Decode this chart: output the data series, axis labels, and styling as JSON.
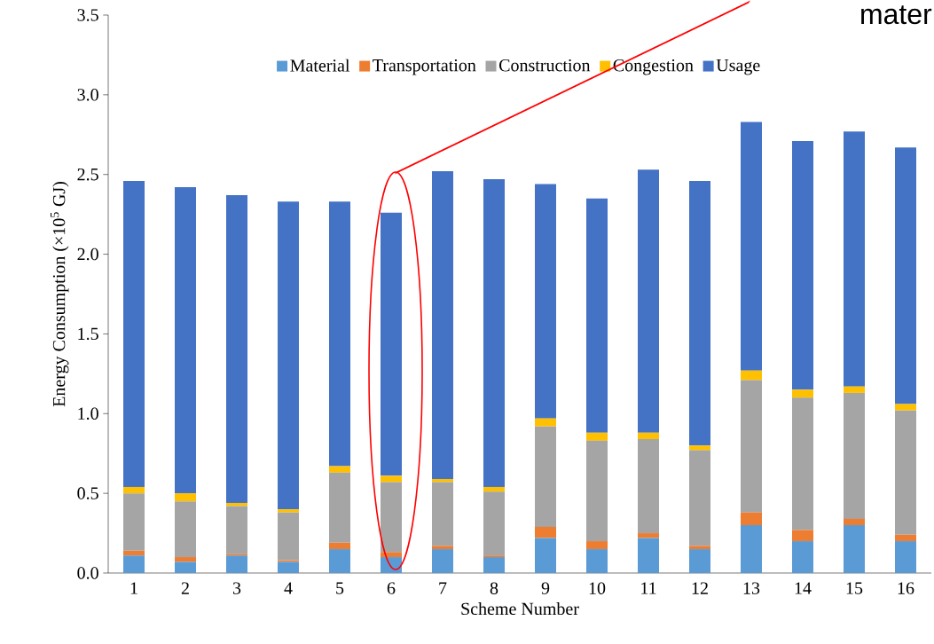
{
  "chart_data": {
    "type": "bar",
    "stacked": true,
    "xlabel": "Scheme Number",
    "ylabel": "Energy Consumption (×10$^{5}$ GJ)",
    "categories": [
      "1",
      "2",
      "3",
      "4",
      "5",
      "6",
      "7",
      "8",
      "9",
      "10",
      "11",
      "12",
      "13",
      "14",
      "15",
      "16"
    ],
    "series": [
      {
        "name": "Material",
        "color": "#5b9bd5",
        "values": [
          0.11,
          0.07,
          0.11,
          0.07,
          0.15,
          0.1,
          0.15,
          0.1,
          0.22,
          0.15,
          0.22,
          0.15,
          0.3,
          0.2,
          0.3,
          0.2
        ]
      },
      {
        "name": "Transportation",
        "color": "#ed7d31",
        "values": [
          0.03,
          0.03,
          0.01,
          0.01,
          0.04,
          0.03,
          0.02,
          0.01,
          0.07,
          0.05,
          0.03,
          0.02,
          0.08,
          0.07,
          0.04,
          0.04
        ]
      },
      {
        "name": "Construction",
        "color": "#a5a5a5",
        "values": [
          0.36,
          0.35,
          0.3,
          0.3,
          0.44,
          0.44,
          0.4,
          0.4,
          0.63,
          0.63,
          0.59,
          0.6,
          0.83,
          0.83,
          0.79,
          0.78
        ]
      },
      {
        "name": "Congestion",
        "color": "#ffc000",
        "values": [
          0.04,
          0.05,
          0.02,
          0.02,
          0.04,
          0.04,
          0.02,
          0.03,
          0.05,
          0.05,
          0.04,
          0.03,
          0.06,
          0.05,
          0.04,
          0.04
        ]
      },
      {
        "name": "Usage",
        "color": "#4472c4",
        "values": [
          1.92,
          1.92,
          1.93,
          1.93,
          1.66,
          1.65,
          1.93,
          1.93,
          1.47,
          1.47,
          1.65,
          1.66,
          1.56,
          1.56,
          1.6,
          1.61
        ]
      }
    ],
    "ylim": [
      0,
      3.5
    ],
    "yticks": [
      {
        "value": 0,
        "label": "0.0"
      },
      {
        "value": 0.5,
        "label": "0.5"
      },
      {
        "value": 1,
        "label": "1.0"
      },
      {
        "value": 1.5,
        "label": "1.5"
      },
      {
        "value": 2,
        "label": "2.0"
      },
      {
        "value": 2.5,
        "label": "2.5"
      },
      {
        "value": 3,
        "label": "3.0"
      },
      {
        "value": 3.5,
        "label": "3.5"
      }
    ],
    "legend": "top",
    "annotations": [
      "mater"
    ]
  }
}
